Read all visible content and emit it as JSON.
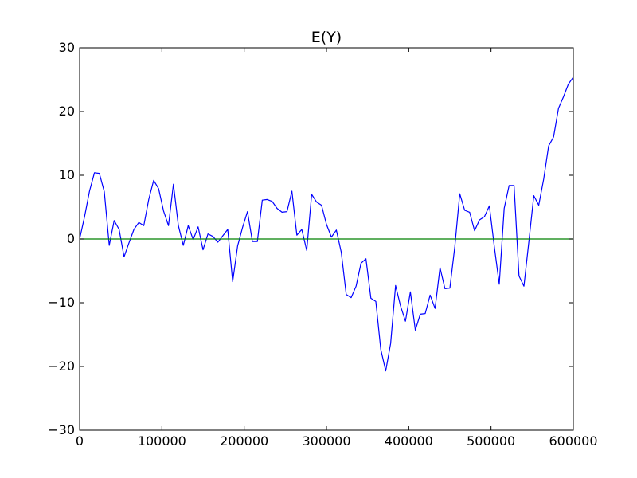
{
  "chart_data": {
    "type": "line",
    "title": "E(Y)",
    "xlabel": "",
    "ylabel": "",
    "xlim": [
      0,
      600000
    ],
    "ylim": [
      -30,
      30
    ],
    "x_ticks": [
      0,
      100000,
      200000,
      300000,
      400000,
      500000,
      600000
    ],
    "x_tick_labels": [
      "0",
      "100000",
      "200000",
      "300000",
      "400000",
      "500000",
      "600000"
    ],
    "y_ticks": [
      -30,
      -20,
      -10,
      0,
      10,
      20,
      30
    ],
    "y_tick_labels": [
      "−30",
      "−20",
      "−10",
      "0",
      "10",
      "20",
      "30"
    ],
    "grid": false,
    "legend": "none",
    "series": [
      {
        "color": "#0000ff",
        "x": [
          0,
          6000,
          12000,
          18000,
          24000,
          30000,
          36000,
          42000,
          48000,
          54000,
          60000,
          66000,
          72000,
          78000,
          84000,
          90000,
          96000,
          102000,
          108000,
          114000,
          120000,
          126000,
          132000,
          138000,
          144000,
          150000,
          156000,
          162000,
          168000,
          174000,
          180000,
          186000,
          192000,
          198000,
          204000,
          210000,
          216000,
          222000,
          228000,
          234000,
          240000,
          246000,
          252000,
          258000,
          264000,
          270000,
          276000,
          282000,
          288000,
          294000,
          300000,
          306000,
          312000,
          318000,
          324000,
          330000,
          336000,
          342000,
          348000,
          354000,
          360000,
          366000,
          372000,
          378000,
          384000,
          390000,
          396000,
          402000,
          408000,
          414000,
          420000,
          426000,
          432000,
          438000,
          444000,
          450000,
          456000,
          462000,
          468000,
          474000,
          480000,
          486000,
          492000,
          498000,
          504000,
          510000,
          516000,
          522000,
          528000,
          534000,
          540000,
          546000,
          552000,
          558000,
          564000,
          570000,
          576000,
          582000,
          588000,
          594000,
          600000
        ],
        "values": [
          0.0,
          3.5,
          7.5,
          10.4,
          10.3,
          7.4,
          -1.0,
          2.9,
          1.5,
          -2.8,
          -0.6,
          1.5,
          2.6,
          2.1,
          6.2,
          9.2,
          7.9,
          4.4,
          2.1,
          8.6,
          2.1,
          -1.0,
          2.1,
          -0.1,
          1.9,
          -1.7,
          0.8,
          0.4,
          -0.5,
          0.5,
          1.5,
          -6.7,
          -1.1,
          1.8,
          4.3,
          -0.4,
          -0.4,
          6.1,
          6.2,
          5.9,
          4.8,
          4.2,
          4.3,
          7.5,
          0.6,
          1.5,
          -1.8,
          7.0,
          5.8,
          5.3,
          2.3,
          0.3,
          1.4,
          -2.1,
          -8.7,
          -9.2,
          -7.4,
          -3.8,
          -3.1,
          -9.3,
          -9.8,
          -17.3,
          -20.7,
          -16.4,
          -7.3,
          -10.5,
          -12.9,
          -8.3,
          -14.3,
          -11.8,
          -11.7,
          -8.8,
          -10.9,
          -4.5,
          -7.8,
          -7.7,
          -1.2,
          7.1,
          4.5,
          4.2,
          1.3,
          3.0,
          3.5,
          5.2,
          -1.2,
          -7.1,
          4.8,
          8.4,
          8.4,
          -5.8,
          -7.4,
          -0.4,
          6.8,
          5.3,
          9.4,
          14.6,
          16.0,
          20.5,
          22.3,
          24.3,
          25.4
        ]
      },
      {
        "color": "#008000",
        "x": [
          0,
          600000
        ],
        "values": [
          0,
          0
        ]
      }
    ]
  }
}
